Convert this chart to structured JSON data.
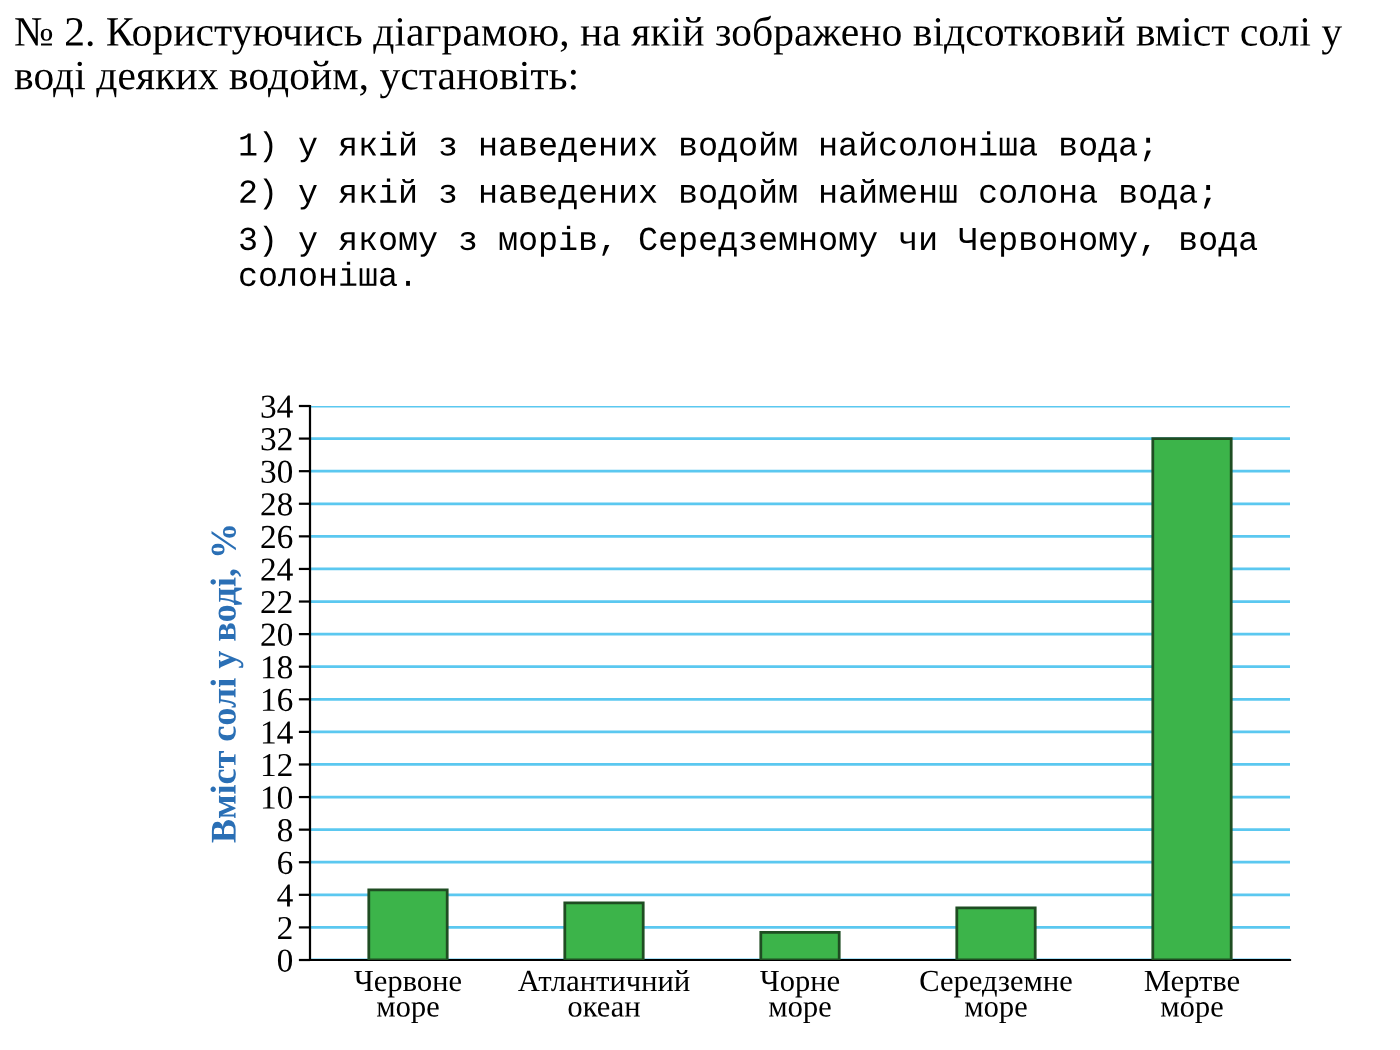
{
  "chart_data": {
    "type": "bar",
    "title": "№ 2. Користуючись діаграмою, на якій зображено відсотковий вміст солі у воді деяких водойм, установіть:",
    "annotations": [
      "1) у якій з наведених водойм найсолоніша вода;",
      "2) у якій з наведених водойм найменш солона вода;",
      "3) у якому з морів, Середземному чи Червоному, вода солоніша."
    ],
    "ylabel": "Вміст солі у воді, %",
    "categories": [
      "Червоне\nморе",
      "Атлантичний\nокеан",
      "Чорне\nморе",
      "Середземне\nморе",
      "Мертве\nморе"
    ],
    "values": [
      4.3,
      3.5,
      1.7,
      3.2,
      32
    ],
    "color": "#3cb44a",
    "ylim": [
      0,
      34
    ],
    "yticks": [
      0,
      2,
      4,
      6,
      8,
      10,
      12,
      14,
      16,
      18,
      20,
      22,
      24,
      26,
      28,
      30,
      32,
      34
    ],
    "grid": "y"
  }
}
